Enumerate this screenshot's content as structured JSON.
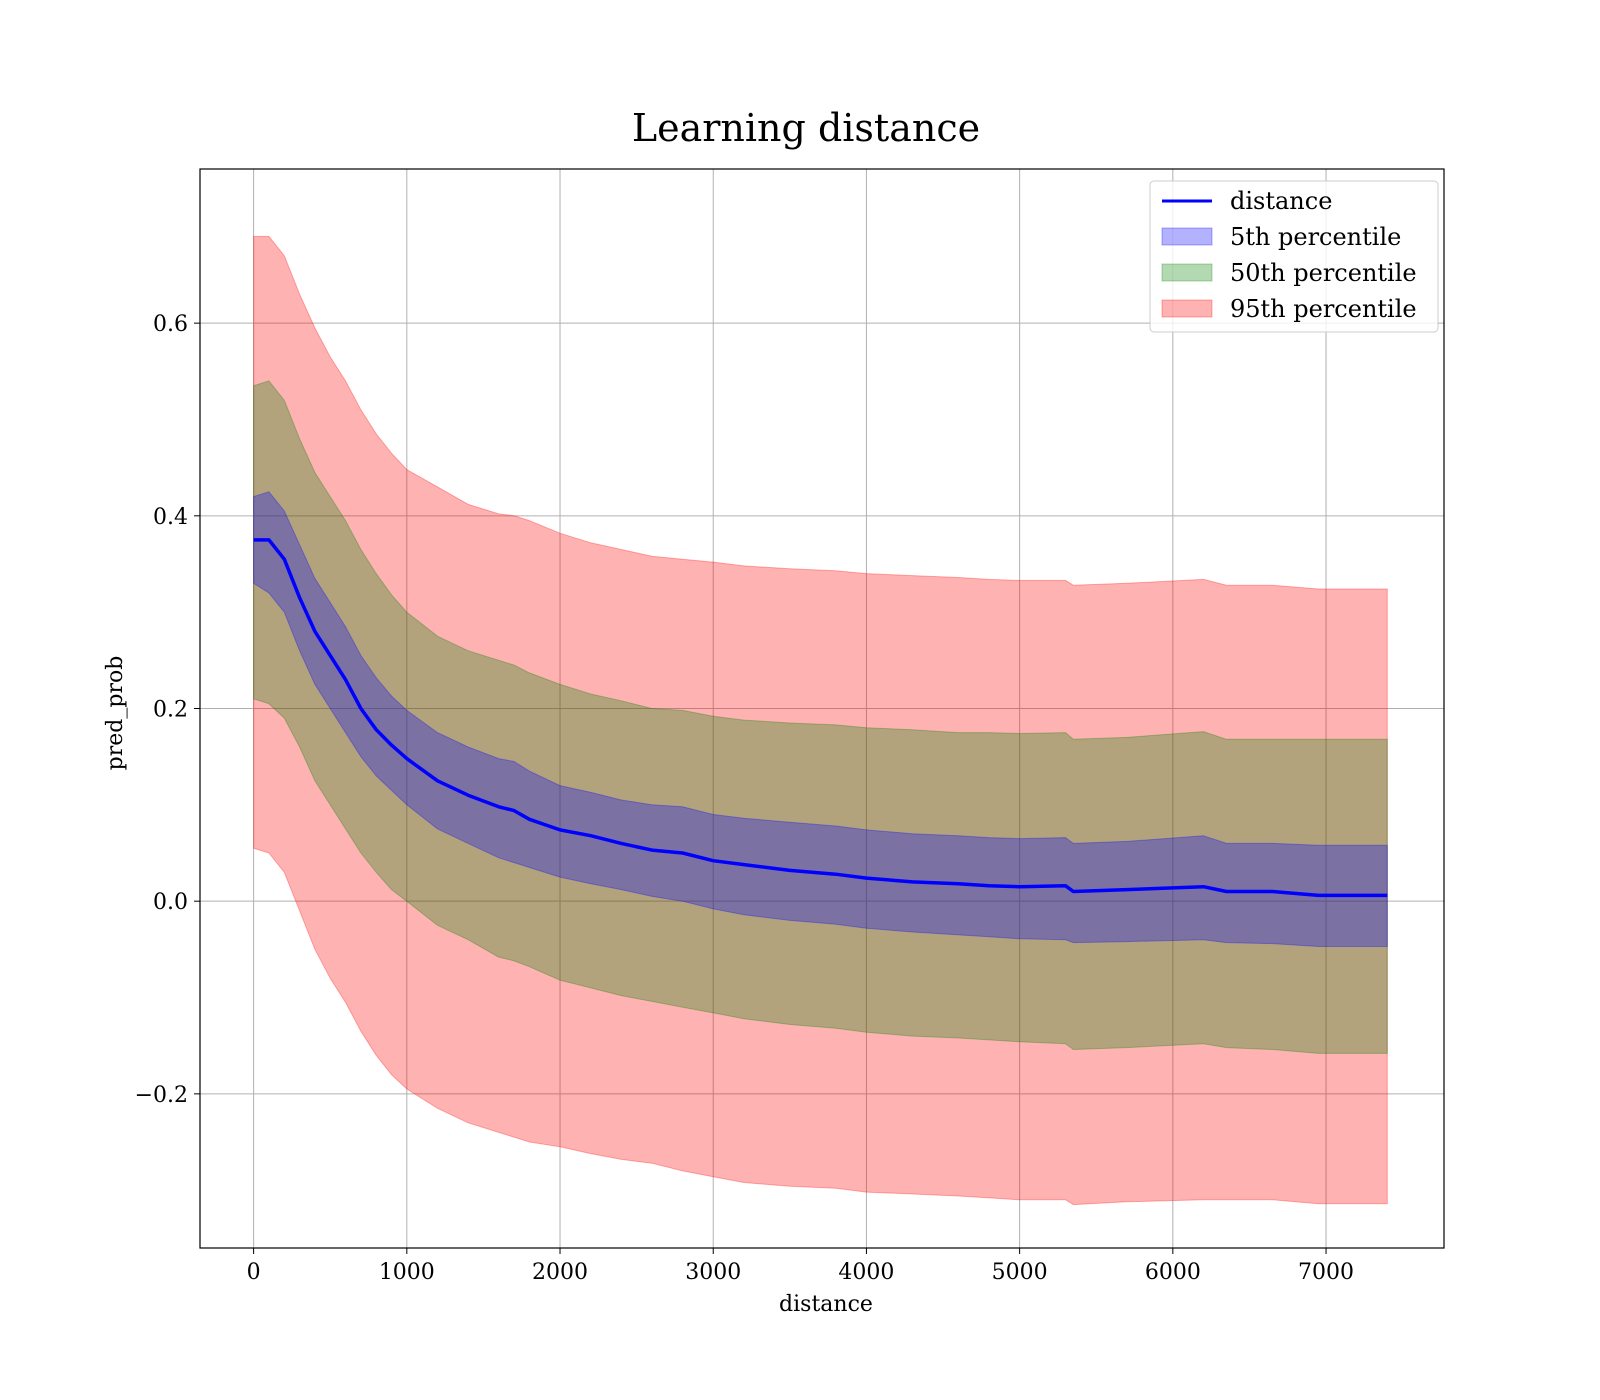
{
  "chart_data": {
    "type": "line",
    "title": "Learning distance",
    "xlabel": "distance",
    "ylabel": "pred_prob",
    "xlim": [
      -350,
      7770
    ],
    "ylim": [
      -0.36,
      0.76
    ],
    "xticks": [
      0,
      1000,
      2000,
      3000,
      4000,
      5000,
      6000,
      7000
    ],
    "xtick_labels": [
      "0",
      "1000",
      "2000",
      "3000",
      "4000",
      "5000",
      "6000",
      "7000"
    ],
    "yticks": [
      -0.2,
      0.0,
      0.2,
      0.4,
      0.6
    ],
    "ytick_labels": [
      "−0.2",
      "0.0",
      "0.2",
      "0.4",
      "0.6"
    ],
    "grid": true,
    "legend_position": "top-right",
    "colors": {
      "line": "#0000ff",
      "band_5": "#0000ff",
      "band_50": "#008000",
      "band_95": "#ff0000"
    },
    "x": [
      0,
      100,
      200,
      300,
      400,
      500,
      600,
      700,
      800,
      900,
      1000,
      1200,
      1400,
      1600,
      1700,
      1800,
      2000,
      2200,
      2400,
      2600,
      2800,
      3000,
      3200,
      3500,
      3800,
      4000,
      4300,
      4600,
      4800,
      5000,
      5300,
      5350,
      5700,
      6200,
      6350,
      6650,
      6950,
      7400
    ],
    "series": [
      {
        "name": "distance",
        "type": "line",
        "values": [
          0.375,
          0.375,
          0.355,
          0.315,
          0.28,
          0.255,
          0.23,
          0.2,
          0.178,
          0.162,
          0.148,
          0.125,
          0.11,
          0.098,
          0.094,
          0.085,
          0.074,
          0.068,
          0.06,
          0.053,
          0.05,
          0.042,
          0.038,
          0.032,
          0.028,
          0.024,
          0.02,
          0.018,
          0.016,
          0.015,
          0.016,
          0.01,
          0.012,
          0.015,
          0.01,
          0.01,
          0.006,
          0.006
        ]
      },
      {
        "name": "5th percentile",
        "type": "band",
        "lower": [
          0.33,
          0.32,
          0.3,
          0.26,
          0.225,
          0.2,
          0.175,
          0.15,
          0.13,
          0.115,
          0.1,
          0.075,
          0.06,
          0.045,
          0.04,
          0.035,
          0.025,
          0.018,
          0.012,
          0.005,
          0.0,
          -0.008,
          -0.014,
          -0.02,
          -0.024,
          -0.028,
          -0.032,
          -0.035,
          -0.037,
          -0.039,
          -0.04,
          -0.043,
          -0.042,
          -0.04,
          -0.043,
          -0.044,
          -0.047,
          -0.047
        ],
        "upper": [
          0.42,
          0.425,
          0.405,
          0.37,
          0.335,
          0.31,
          0.285,
          0.255,
          0.232,
          0.213,
          0.198,
          0.175,
          0.16,
          0.148,
          0.145,
          0.135,
          0.12,
          0.113,
          0.105,
          0.1,
          0.098,
          0.09,
          0.086,
          0.082,
          0.078,
          0.074,
          0.07,
          0.068,
          0.066,
          0.065,
          0.066,
          0.06,
          0.062,
          0.068,
          0.06,
          0.06,
          0.058,
          0.058
        ]
      },
      {
        "name": "50th percentile",
        "type": "band",
        "lower": [
          0.21,
          0.205,
          0.19,
          0.16,
          0.125,
          0.1,
          0.075,
          0.05,
          0.03,
          0.012,
          0.0,
          -0.025,
          -0.04,
          -0.058,
          -0.062,
          -0.068,
          -0.082,
          -0.09,
          -0.098,
          -0.104,
          -0.11,
          -0.116,
          -0.122,
          -0.128,
          -0.132,
          -0.136,
          -0.14,
          -0.142,
          -0.144,
          -0.146,
          -0.148,
          -0.154,
          -0.152,
          -0.148,
          -0.152,
          -0.154,
          -0.158,
          -0.158
        ],
        "upper": [
          0.535,
          0.54,
          0.52,
          0.48,
          0.445,
          0.42,
          0.395,
          0.365,
          0.34,
          0.318,
          0.3,
          0.275,
          0.26,
          0.25,
          0.245,
          0.237,
          0.225,
          0.215,
          0.208,
          0.2,
          0.198,
          0.192,
          0.188,
          0.185,
          0.183,
          0.18,
          0.178,
          0.175,
          0.175,
          0.174,
          0.175,
          0.168,
          0.17,
          0.176,
          0.168,
          0.168,
          0.168,
          0.168
        ]
      },
      {
        "name": "95th percentile",
        "type": "band",
        "lower": [
          0.055,
          0.05,
          0.03,
          -0.01,
          -0.05,
          -0.08,
          -0.105,
          -0.135,
          -0.16,
          -0.18,
          -0.195,
          -0.215,
          -0.23,
          -0.24,
          -0.245,
          -0.25,
          -0.255,
          -0.262,
          -0.268,
          -0.272,
          -0.28,
          -0.286,
          -0.292,
          -0.296,
          -0.298,
          -0.302,
          -0.304,
          -0.306,
          -0.308,
          -0.31,
          -0.31,
          -0.315,
          -0.312,
          -0.31,
          -0.31,
          -0.31,
          -0.314,
          -0.314
        ],
        "upper": [
          0.69,
          0.69,
          0.67,
          0.63,
          0.595,
          0.565,
          0.54,
          0.51,
          0.485,
          0.465,
          0.448,
          0.43,
          0.412,
          0.402,
          0.4,
          0.395,
          0.382,
          0.372,
          0.365,
          0.358,
          0.355,
          0.352,
          0.348,
          0.345,
          0.343,
          0.34,
          0.338,
          0.336,
          0.334,
          0.333,
          0.333,
          0.328,
          0.33,
          0.334,
          0.328,
          0.328,
          0.324,
          0.324
        ]
      }
    ]
  }
}
